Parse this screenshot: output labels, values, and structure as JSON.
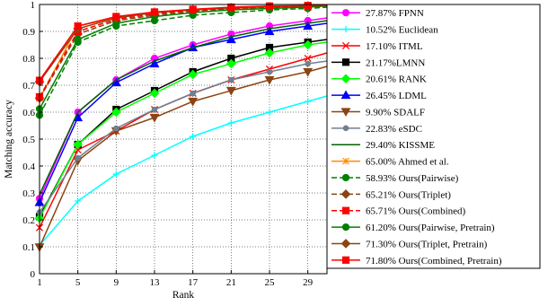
{
  "chart_data": {
    "type": "line",
    "xlabel": "Rank",
    "ylabel": "Matching accuracy",
    "xlim": [
      1,
      31
    ],
    "ylim": [
      0,
      1
    ],
    "x_ticks": [
      1,
      5,
      9,
      13,
      17,
      21,
      25,
      29
    ],
    "y_ticks": [
      0,
      0.1,
      0.2,
      0.3,
      0.4,
      0.5,
      0.6,
      0.7,
      0.8,
      0.9,
      1
    ],
    "y_tick_labels": [
      "0",
      "0.1",
      "0.2",
      "0.3",
      "0.4",
      "0.5",
      "0.6",
      "0.7",
      "0.8",
      "0.9",
      "1"
    ],
    "grid": true,
    "legend_position": "right",
    "series": [
      {
        "name": "27.87% FPNN",
        "color": "#ff00ff",
        "dash": "solid",
        "marker": "circle",
        "x": [
          1,
          5,
          9,
          13,
          17,
          21,
          25,
          29,
          31
        ],
        "y": [
          0.279,
          0.6,
          0.72,
          0.8,
          0.85,
          0.89,
          0.92,
          0.94,
          0.95
        ]
      },
      {
        "name": "10.52% Euclidean",
        "color": "#00ffff",
        "dash": "solid",
        "marker": "plus",
        "x": [
          1,
          5,
          9,
          13,
          17,
          21,
          25,
          29,
          31
        ],
        "y": [
          0.105,
          0.27,
          0.37,
          0.44,
          0.51,
          0.56,
          0.6,
          0.64,
          0.66
        ]
      },
      {
        "name": "17.10% ITML",
        "color": "#ff0000",
        "dash": "solid",
        "marker": "x",
        "x": [
          1,
          5,
          9,
          13,
          17,
          21,
          25,
          29,
          31
        ],
        "y": [
          0.171,
          0.46,
          0.53,
          0.61,
          0.67,
          0.72,
          0.76,
          0.8,
          0.82
        ]
      },
      {
        "name": "21.17%LMNN",
        "color": "#000000",
        "dash": "solid",
        "marker": "square",
        "x": [
          1,
          5,
          9,
          13,
          17,
          21,
          25,
          29,
          31
        ],
        "y": [
          0.212,
          0.48,
          0.61,
          0.68,
          0.75,
          0.8,
          0.84,
          0.86,
          0.87
        ]
      },
      {
        "name": "20.61% RANK",
        "color": "#00ff00",
        "dash": "solid",
        "marker": "diamond",
        "x": [
          1,
          5,
          9,
          13,
          17,
          21,
          25,
          29,
          31
        ],
        "y": [
          0.206,
          0.48,
          0.6,
          0.67,
          0.74,
          0.78,
          0.82,
          0.85,
          0.86
        ]
      },
      {
        "name": "26.45% LDML",
        "color": "#0000ff",
        "dash": "solid",
        "marker": "triangle-up",
        "x": [
          1,
          5,
          9,
          13,
          17,
          21,
          25,
          29,
          31
        ],
        "y": [
          0.265,
          0.58,
          0.71,
          0.78,
          0.84,
          0.87,
          0.9,
          0.92,
          0.93
        ]
      },
      {
        "name": "9.90% SDALF",
        "color": "#8b4513",
        "dash": "solid",
        "marker": "triangle-down",
        "x": [
          1,
          5,
          9,
          13,
          17,
          21,
          25,
          29,
          31
        ],
        "y": [
          0.099,
          0.42,
          0.53,
          0.58,
          0.64,
          0.68,
          0.72,
          0.75,
          0.77
        ]
      },
      {
        "name": "22.83% eSDC",
        "color": "#708090",
        "dash": "solid",
        "marker": "circle-small",
        "x": [
          1,
          5,
          9,
          13,
          17,
          21,
          25,
          29,
          31
        ],
        "y": [
          0.228,
          0.43,
          0.54,
          0.61,
          0.67,
          0.72,
          0.75,
          0.78,
          0.79
        ]
      },
      {
        "name": "29.40% KISSME",
        "color": "#006400",
        "dash": "solid",
        "marker": "none",
        "x": [
          1,
          5,
          9,
          13,
          17,
          21,
          25,
          29,
          31
        ],
        "y": [
          0.294,
          0.6,
          0.72,
          0.79,
          0.84,
          0.88,
          0.91,
          0.93,
          0.94
        ]
      },
      {
        "name": "65.00% Ahmed et al.",
        "color": "#ff8c00",
        "dash": "solid",
        "marker": "star",
        "x": [
          1,
          5,
          9,
          13,
          17,
          21,
          25,
          29,
          31
        ],
        "y": [
          0.65,
          0.92,
          0.95,
          0.97,
          0.98,
          0.985,
          0.99,
          0.99,
          0.995
        ]
      },
      {
        "name": "58.93% Ours(Pairwise)",
        "color": "#008000",
        "dash": "dashed",
        "marker": "circle",
        "x": [
          1,
          5,
          9,
          13,
          17,
          21,
          25,
          29,
          31
        ],
        "y": [
          0.589,
          0.86,
          0.92,
          0.94,
          0.96,
          0.97,
          0.98,
          0.985,
          0.99
        ]
      },
      {
        "name": "65.21% Ours(Triplet)",
        "color": "#8b4513",
        "dash": "dashed",
        "marker": "diamond",
        "x": [
          1,
          5,
          9,
          13,
          17,
          21,
          25,
          29,
          31
        ],
        "y": [
          0.652,
          0.89,
          0.94,
          0.96,
          0.975,
          0.985,
          0.99,
          0.99,
          0.995
        ]
      },
      {
        "name": "65.71% Ours(Combined)",
        "color": "#ff0000",
        "dash": "dashed",
        "marker": "square",
        "x": [
          1,
          5,
          9,
          13,
          17,
          21,
          25,
          29,
          31
        ],
        "y": [
          0.657,
          0.9,
          0.945,
          0.965,
          0.978,
          0.986,
          0.99,
          0.992,
          0.995
        ]
      },
      {
        "name": "61.20% Ours(Pairwise, Pretrain)",
        "color": "#008000",
        "dash": "solid",
        "marker": "circle",
        "x": [
          1,
          5,
          9,
          13,
          17,
          21,
          25,
          29,
          31
        ],
        "y": [
          0.612,
          0.87,
          0.93,
          0.955,
          0.97,
          0.98,
          0.985,
          0.99,
          0.995
        ]
      },
      {
        "name": "71.30% Ours(Triplet, Pretrain)",
        "color": "#8b4513",
        "dash": "solid",
        "marker": "diamond",
        "x": [
          1,
          5,
          9,
          13,
          17,
          21,
          25,
          29,
          31
        ],
        "y": [
          0.713,
          0.91,
          0.95,
          0.97,
          0.98,
          0.988,
          0.992,
          0.995,
          0.997
        ]
      },
      {
        "name": "71.80% Ours(Combined, Pretrain)",
        "color": "#ff0000",
        "dash": "solid",
        "marker": "square",
        "x": [
          1,
          5,
          9,
          13,
          17,
          21,
          25,
          29,
          31
        ],
        "y": [
          0.718,
          0.92,
          0.955,
          0.972,
          0.982,
          0.99,
          0.994,
          0.996,
          0.998
        ]
      }
    ]
  }
}
